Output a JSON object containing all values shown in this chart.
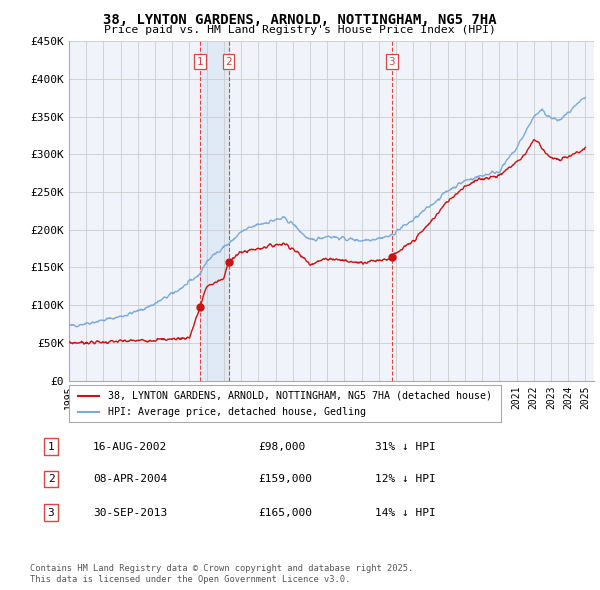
{
  "title": "38, LYNTON GARDENS, ARNOLD, NOTTINGHAM, NG5 7HA",
  "subtitle": "Price paid vs. HM Land Registry's House Price Index (HPI)",
  "legend_red": "38, LYNTON GARDENS, ARNOLD, NOTTINGHAM, NG5 7HA (detached house)",
  "legend_blue": "HPI: Average price, detached house, Gedling",
  "transactions": [
    {
      "num": 1,
      "date": "16-AUG-2002",
      "price": 98000,
      "hpi_rel": "31% ↓ HPI",
      "year": 2002.62
    },
    {
      "num": 2,
      "date": "08-APR-2004",
      "price": 159000,
      "hpi_rel": "12% ↓ HPI",
      "year": 2004.27
    },
    {
      "num": 3,
      "date": "30-SEP-2013",
      "price": 165000,
      "hpi_rel": "14% ↓ HPI",
      "year": 2013.75
    }
  ],
  "footnote1": "Contains HM Land Registry data © Crown copyright and database right 2025.",
  "footnote2": "This data is licensed under the Open Government Licence v3.0.",
  "xmin": 1995,
  "xmax": 2025.5,
  "ymin": 0,
  "ymax": 450000,
  "yticks": [
    0,
    50000,
    100000,
    150000,
    200000,
    250000,
    300000,
    350000,
    400000,
    450000
  ],
  "ytick_labels": [
    "£0",
    "£50K",
    "£100K",
    "£150K",
    "£200K",
    "£250K",
    "£300K",
    "£350K",
    "£400K",
    "£450K"
  ],
  "xticks": [
    1995,
    1996,
    1997,
    1998,
    1999,
    2000,
    2001,
    2002,
    2003,
    2004,
    2005,
    2006,
    2007,
    2008,
    2009,
    2010,
    2011,
    2012,
    2013,
    2014,
    2015,
    2016,
    2017,
    2018,
    2019,
    2020,
    2021,
    2022,
    2023,
    2024,
    2025
  ],
  "vline_color": "#dd4444",
  "bg_color": "#ffffff",
  "chart_bg": "#f0f4fa",
  "grid_color": "#cccccc",
  "red_line_color": "#cc1111",
  "blue_line_color": "#7aaadd",
  "shade_color": "#dce8f5"
}
